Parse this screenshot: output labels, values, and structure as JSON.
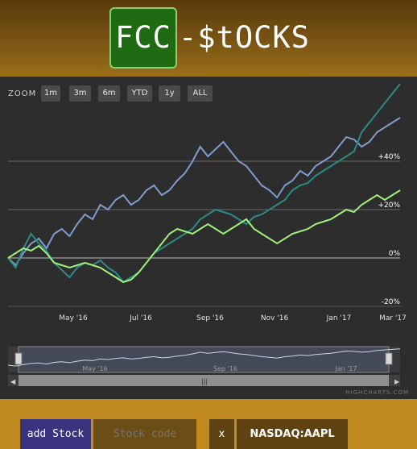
{
  "app": {
    "logo_left": "FCC",
    "logo_right": "-$tOCKS"
  },
  "zoom": {
    "label": "ZOOM",
    "buttons": [
      "1m",
      "3m",
      "6m",
      "YTD",
      "1y",
      "ALL"
    ]
  },
  "chart_data": {
    "type": "line",
    "x_ticks": [
      "May '16",
      "Jul '16",
      "Sep '16",
      "Nov '16",
      "Jan '17",
      "Mar '17"
    ],
    "y_ticks": [
      "+40%",
      "+20%",
      "0%",
      "-20%"
    ],
    "ylim": [
      -20,
      60
    ],
    "grid": true,
    "series": [
      {
        "color": "#7f9ccf",
        "values": [
          0,
          -3,
          2,
          6,
          8,
          4,
          10,
          12,
          9,
          14,
          18,
          16,
          22,
          20,
          24,
          26,
          22,
          24,
          28,
          30,
          26,
          28,
          32,
          35,
          40,
          46,
          42,
          45,
          48,
          44,
          40,
          38,
          34,
          30,
          28,
          25,
          30,
          32,
          36,
          34,
          38,
          40,
          42,
          46,
          50,
          49,
          46,
          48,
          52,
          54,
          56,
          58
        ]
      },
      {
        "color": "#2d8a86",
        "values": [
          0,
          -4,
          4,
          10,
          6,
          3,
          -2,
          -5,
          -8,
          -4,
          -2,
          -3,
          -1,
          -4,
          -6,
          -10,
          -8,
          -6,
          -2,
          2,
          4,
          6,
          8,
          10,
          12,
          16,
          18,
          20,
          19,
          18,
          16,
          14,
          17,
          18,
          20,
          22,
          24,
          28,
          30,
          31,
          34,
          36,
          38,
          40,
          42,
          44,
          52,
          56,
          60,
          64,
          68,
          72
        ]
      },
      {
        "color": "#9ef07b",
        "values": [
          0,
          2,
          4,
          3,
          5,
          2,
          -2,
          -3,
          -4,
          -3,
          -2,
          -3,
          -4,
          -6,
          -8,
          -10,
          -9,
          -6,
          -2,
          2,
          6,
          10,
          12,
          11,
          10,
          12,
          14,
          12,
          10,
          12,
          14,
          16,
          12,
          10,
          8,
          6,
          8,
          10,
          11,
          12,
          14,
          15,
          16,
          18,
          20,
          19,
          22,
          24,
          26,
          24,
          26,
          28
        ]
      }
    ],
    "navigator": {
      "ticks": [
        "May '16",
        "Sep '16",
        "Jan '17"
      ]
    }
  },
  "credits": "HIGHCHARTS.COM",
  "controls": {
    "add_label": "add Stock",
    "code_placeholder": "Stock code",
    "remove_label": "x",
    "stock_label": "NASDAQ:AAPL"
  }
}
